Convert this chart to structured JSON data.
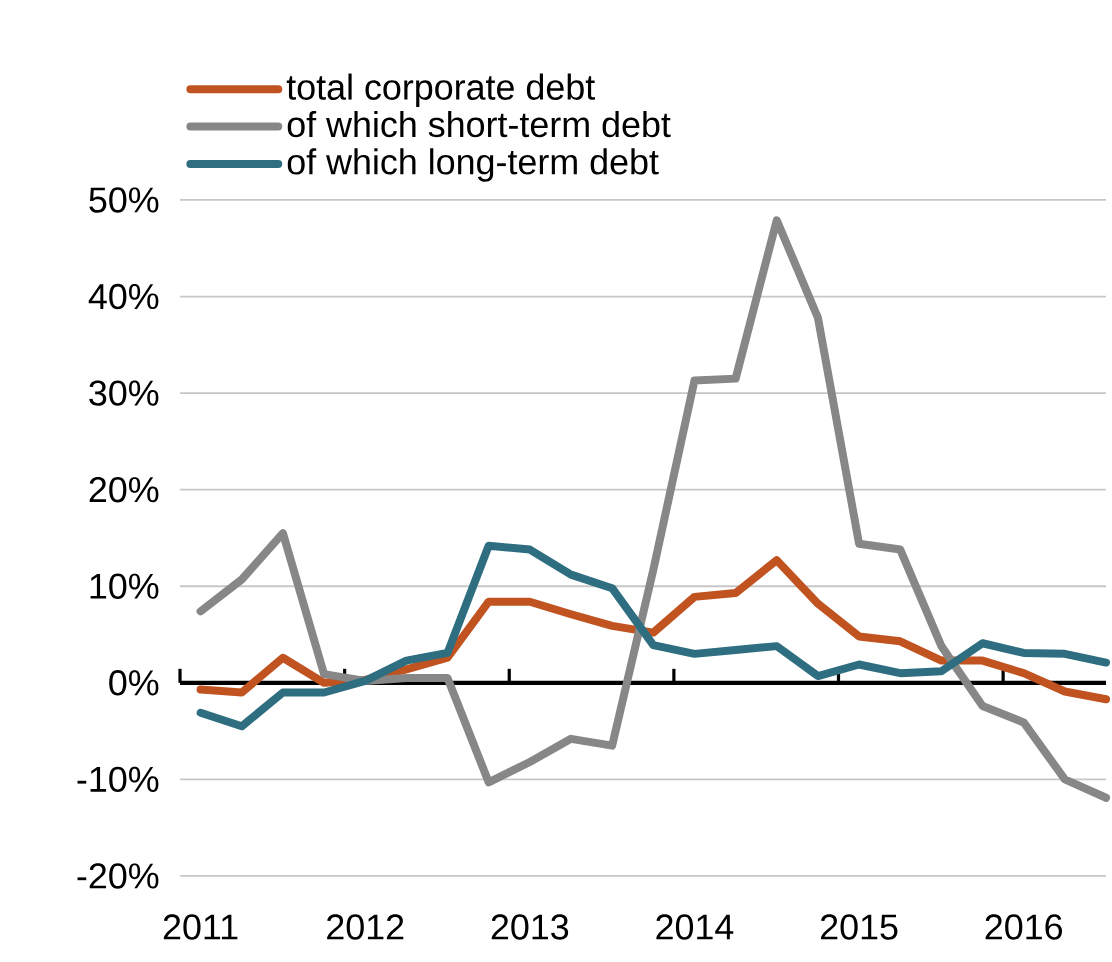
{
  "chart_data": {
    "type": "line",
    "categories": [
      "2011",
      null,
      null,
      null,
      "2012",
      null,
      null,
      null,
      "2013",
      null,
      null,
      null,
      "2014",
      null,
      null,
      null,
      "2015",
      null,
      null,
      null,
      "2016",
      null,
      null
    ],
    "series": [
      {
        "name": "total corporate debt",
        "color": "#c0531f",
        "values": [
          -0.7,
          -1.0,
          2.6,
          0,
          0.3,
          1.4,
          2.6,
          8.4,
          8.4,
          7.1,
          5.9,
          5.2,
          8.9,
          9.3,
          12.7,
          8.2,
          4.8,
          4.3,
          2.3,
          2.3,
          1.0,
          -0.9,
          -1.7
        ]
      },
      {
        "name": "of which short-term debt",
        "color": "#878787",
        "values": [
          7.4,
          10.7,
          15.5,
          0.9,
          0.2,
          0.5,
          0.5,
          -10.3,
          -8.2,
          -5.8,
          -6.5,
          11.7,
          31.3,
          31.5,
          47.9,
          37.8,
          14.4,
          13.8,
          3.8,
          -2.4,
          -4.1,
          -10.0,
          -11.9
        ]
      },
      {
        "name": "of which long-term debt",
        "color": "#2e6e80",
        "values": [
          -3.1,
          -4.5,
          -1.0,
          -1.0,
          0.2,
          2.3,
          3.1,
          14.2,
          13.8,
          11.2,
          9.8,
          3.9,
          3.0,
          3.4,
          3.8,
          0.7,
          1.9,
          1.0,
          1.2,
          4.1,
          3.1,
          3.0,
          2.1
        ]
      }
    ],
    "ylim": [
      -20,
      50
    ],
    "yticks": [
      {
        "value": -20,
        "label": "-20%"
      },
      {
        "value": -10,
        "label": "-10%"
      },
      {
        "value": 0,
        "label": "0%"
      },
      {
        "value": 10,
        "label": "10%"
      },
      {
        "value": 20,
        "label": "20%"
      },
      {
        "value": 30,
        "label": "30%"
      },
      {
        "value": 40,
        "label": "40%"
      },
      {
        "value": 50,
        "label": "50%"
      }
    ],
    "grid": "y",
    "legend": "top left"
  }
}
